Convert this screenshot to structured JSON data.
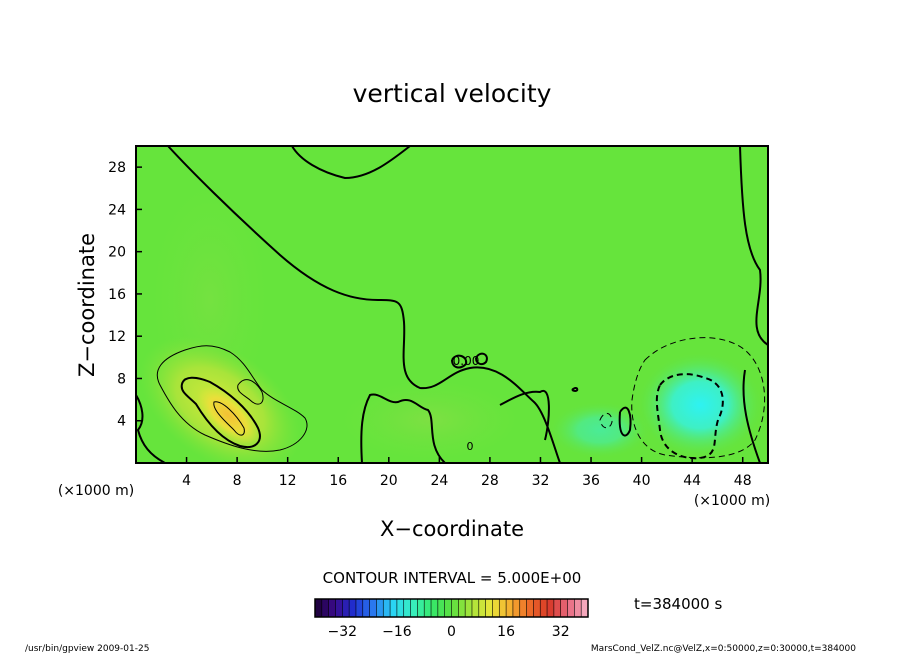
{
  "chart_data": {
    "type": "heatmap",
    "title": "vertical velocity",
    "xlabel": "X−coordinate",
    "ylabel": "Z−coordinate",
    "x_unit": "(×1000 m)",
    "y_unit": "(×1000 m)",
    "xlim": [
      0,
      50
    ],
    "ylim": [
      0,
      30
    ],
    "x_ticks": [
      4,
      8,
      12,
      16,
      20,
      24,
      28,
      32,
      36,
      40,
      44,
      48
    ],
    "x_tick_labels": [
      "4",
      "8",
      "12",
      "16",
      "20",
      "24",
      "28",
      "32",
      "36",
      "40",
      "44",
      "48"
    ],
    "y_ticks": [
      4,
      8,
      12,
      16,
      20,
      24,
      28
    ],
    "y_tick_labels": [
      "4",
      "8",
      "12",
      "16",
      "20",
      "24",
      "28"
    ],
    "contour_interval_text": "CONTOUR INTERVAL = 5.000E+00",
    "time_text": "t=384000 s",
    "colorbar": {
      "range": [
        -40,
        40
      ],
      "ticks": [
        -32,
        -16,
        0,
        16,
        32
      ],
      "tick_labels": [
        "−32",
        "−16",
        "0",
        "16",
        "32"
      ],
      "colors": [
        "#1a0033",
        "#3a0a8a",
        "#1f2fd1",
        "#2a7af0",
        "#2ad4f4",
        "#38f0c0",
        "#35e86a",
        "#5ce040",
        "#a6e33a",
        "#e8e63a",
        "#f4b030",
        "#ec6a28",
        "#d83828",
        "#e86a80",
        "#f6b4c8"
      ]
    },
    "annotations": [
      {
        "text": "0.00",
        "x": 27,
        "y": 9.5
      },
      {
        "text": "0",
        "x": 26.5,
        "y": 1.6
      }
    ],
    "features": [
      {
        "kind": "updraft",
        "center_x": 7.5,
        "center_z": 4.2,
        "peak_value": 15
      },
      {
        "kind": "downdraft",
        "center_x": 44.5,
        "center_z": 5.0,
        "peak_value": -12
      }
    ],
    "background_value": 0
  },
  "footer": {
    "left": "/usr/bin/gpview   2009-01-25",
    "right": "MarsCond_VelZ.nc@VelZ,x=0:50000,z=0:30000,t=384000"
  }
}
